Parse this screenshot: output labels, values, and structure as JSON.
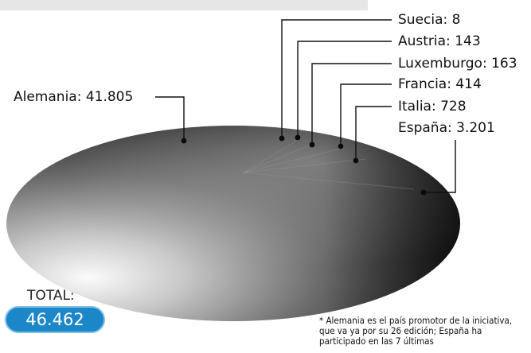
{
  "chart_data": {
    "type": "pie",
    "categories": [
      "Alemania",
      "Suecia",
      "Austria",
      "Luxemburgo",
      "Francia",
      "Italia",
      "España"
    ],
    "values": [
      41805,
      8,
      143,
      163,
      414,
      728,
      3201
    ],
    "labels": [
      "Alemania: 41.805",
      "Suecia: 8",
      "Austria: 143",
      "Luxemburgo: 163",
      "Francia: 414",
      "Italia: 728",
      "España: 3.201"
    ],
    "title": "",
    "style": "3d-ellipse",
    "colors": {
      "dark": "#0a0a0a",
      "light": "#f4f4f4",
      "mid": "#8a8a8a"
    }
  },
  "total": {
    "label": "TOTAL:",
    "value": "46.462",
    "color": "#1b86c8"
  },
  "footnote": "* Alemania es el país promotor de la iniciativa, que va ya por su 26 edición; España ha participado en las 7 últimas"
}
